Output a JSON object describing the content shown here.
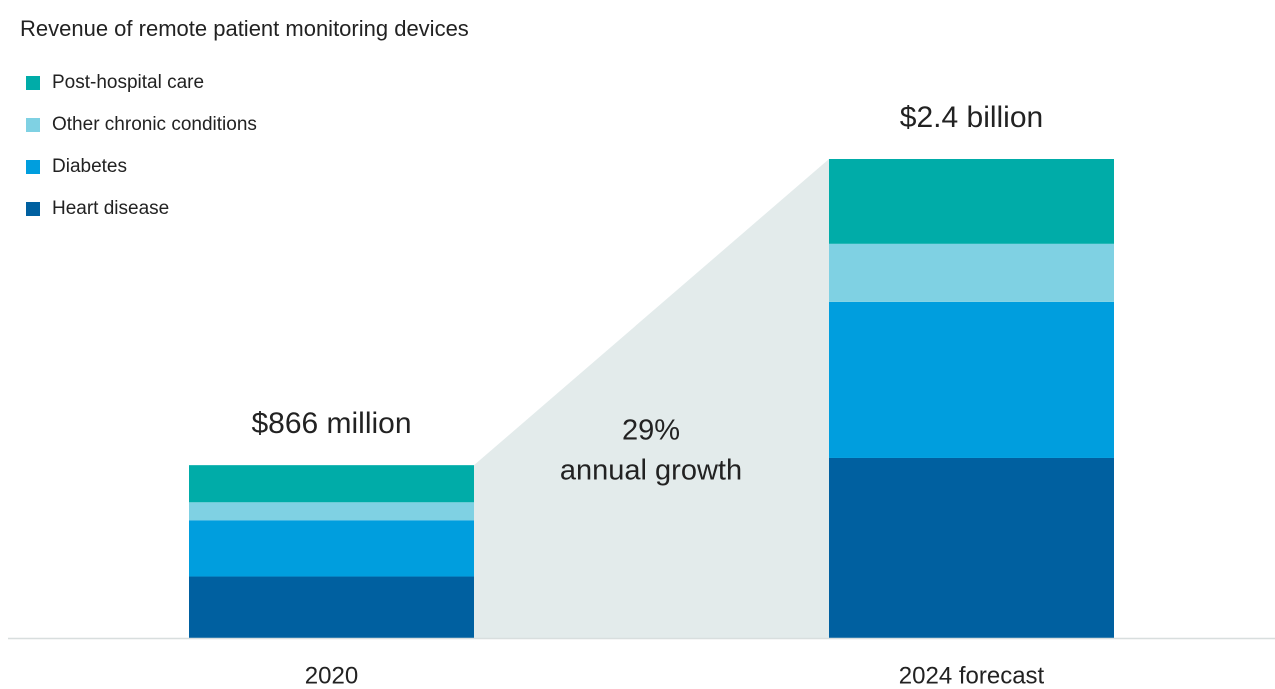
{
  "chart_data": {
    "type": "stacked_bar",
    "title": "Revenue of remote patient monitoring devices",
    "categories": [
      "2020",
      "2024 forecast"
    ],
    "series": [
      {
        "name": "Heart disease",
        "color": "#0060a0",
        "values": [
          308,
          902
        ]
      },
      {
        "name": "Diabetes",
        "color": "#009ede",
        "values": [
          282,
          782
        ]
      },
      {
        "name": "Other chronic conditions",
        "color": "#7fd1e3",
        "values": [
          90,
          291
        ]
      },
      {
        "name": "Post-hospital care",
        "color": "#00aca8",
        "values": [
          186,
          425
        ]
      }
    ],
    "totals": {
      "values": [
        866,
        2400
      ],
      "value_labels": [
        "$866 million",
        "$2.4 billion"
      ]
    },
    "annotation": [
      "29%",
      "annual growth"
    ],
    "connector_color": "#e3ebeb"
  }
}
